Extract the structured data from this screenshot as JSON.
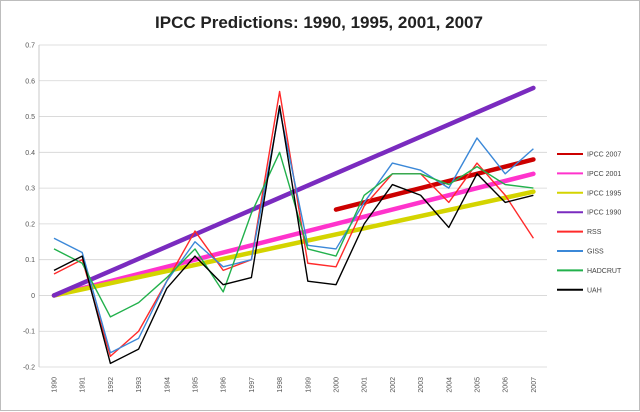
{
  "chart_data": {
    "type": "line",
    "title": "IPCC Predictions: 1990, 1995, 2001, 2007",
    "xlabel": "",
    "ylabel": "",
    "x": [
      "1990",
      "1991",
      "1992",
      "1993",
      "1994",
      "1995",
      "1996",
      "1997",
      "1998",
      "1999",
      "2000",
      "2001",
      "2002",
      "2003",
      "2004",
      "2005",
      "2006",
      "2007"
    ],
    "ylim": [
      -0.2,
      0.7
    ],
    "yticks": [
      "-0.2",
      "-0.1",
      "0",
      "0.1",
      "0.2",
      "0.3",
      "0.4",
      "0.5",
      "0.6",
      "0.7"
    ],
    "grid": true,
    "legend_position": "right",
    "observed_series": [
      {
        "name": "RSS",
        "color": "#ff2a2a",
        "values": [
          0.06,
          0.1,
          -0.17,
          -0.1,
          0.04,
          0.18,
          0.07,
          0.1,
          0.57,
          0.09,
          0.08,
          0.25,
          0.34,
          0.34,
          0.26,
          0.37,
          0.28,
          0.16
        ]
      },
      {
        "name": "GISS",
        "color": "#3b88d8",
        "values": [
          0.16,
          0.12,
          -0.16,
          -0.12,
          0.04,
          0.15,
          0.08,
          0.1,
          0.52,
          0.14,
          0.13,
          0.26,
          0.37,
          0.35,
          0.3,
          0.44,
          0.34,
          0.41
        ]
      },
      {
        "name": "HADCRUT",
        "color": "#22b14c",
        "values": [
          0.13,
          0.09,
          -0.06,
          -0.02,
          0.05,
          0.13,
          0.01,
          0.23,
          0.4,
          0.13,
          0.11,
          0.28,
          0.34,
          0.34,
          0.31,
          0.36,
          0.31,
          0.3
        ]
      },
      {
        "name": "UAH",
        "color": "#000000",
        "values": [
          0.07,
          0.11,
          -0.19,
          -0.15,
          0.02,
          0.11,
          0.03,
          0.05,
          0.53,
          0.04,
          0.03,
          0.2,
          0.31,
          0.28,
          0.19,
          0.34,
          0.26,
          0.28
        ]
      }
    ],
    "trend_series": [
      {
        "name": "IPCC 2007",
        "color": "#cc0000",
        "x_start": "2000",
        "y_start": 0.24,
        "x_end": "2007",
        "y_end": 0.38
      },
      {
        "name": "IPCC 2001",
        "color": "#ff33cc",
        "x_start": "1990",
        "y_start": 0.0,
        "x_end": "2007",
        "y_end": 0.34
      },
      {
        "name": "IPCC 1995",
        "color": "#d4d400",
        "x_start": "1990",
        "y_start": 0.0,
        "x_end": "2007",
        "y_end": 0.29
      },
      {
        "name": "IPCC 1990",
        "color": "#7a2bbf",
        "x_start": "1990",
        "y_start": 0.0,
        "x_end": "2007",
        "y_end": 0.58
      }
    ],
    "legend_order": [
      "IPCC 2007",
      "IPCC 2001",
      "IPCC 1995",
      "IPCC 1990",
      "RSS",
      "GISS",
      "HADCRUT",
      "UAH"
    ]
  }
}
